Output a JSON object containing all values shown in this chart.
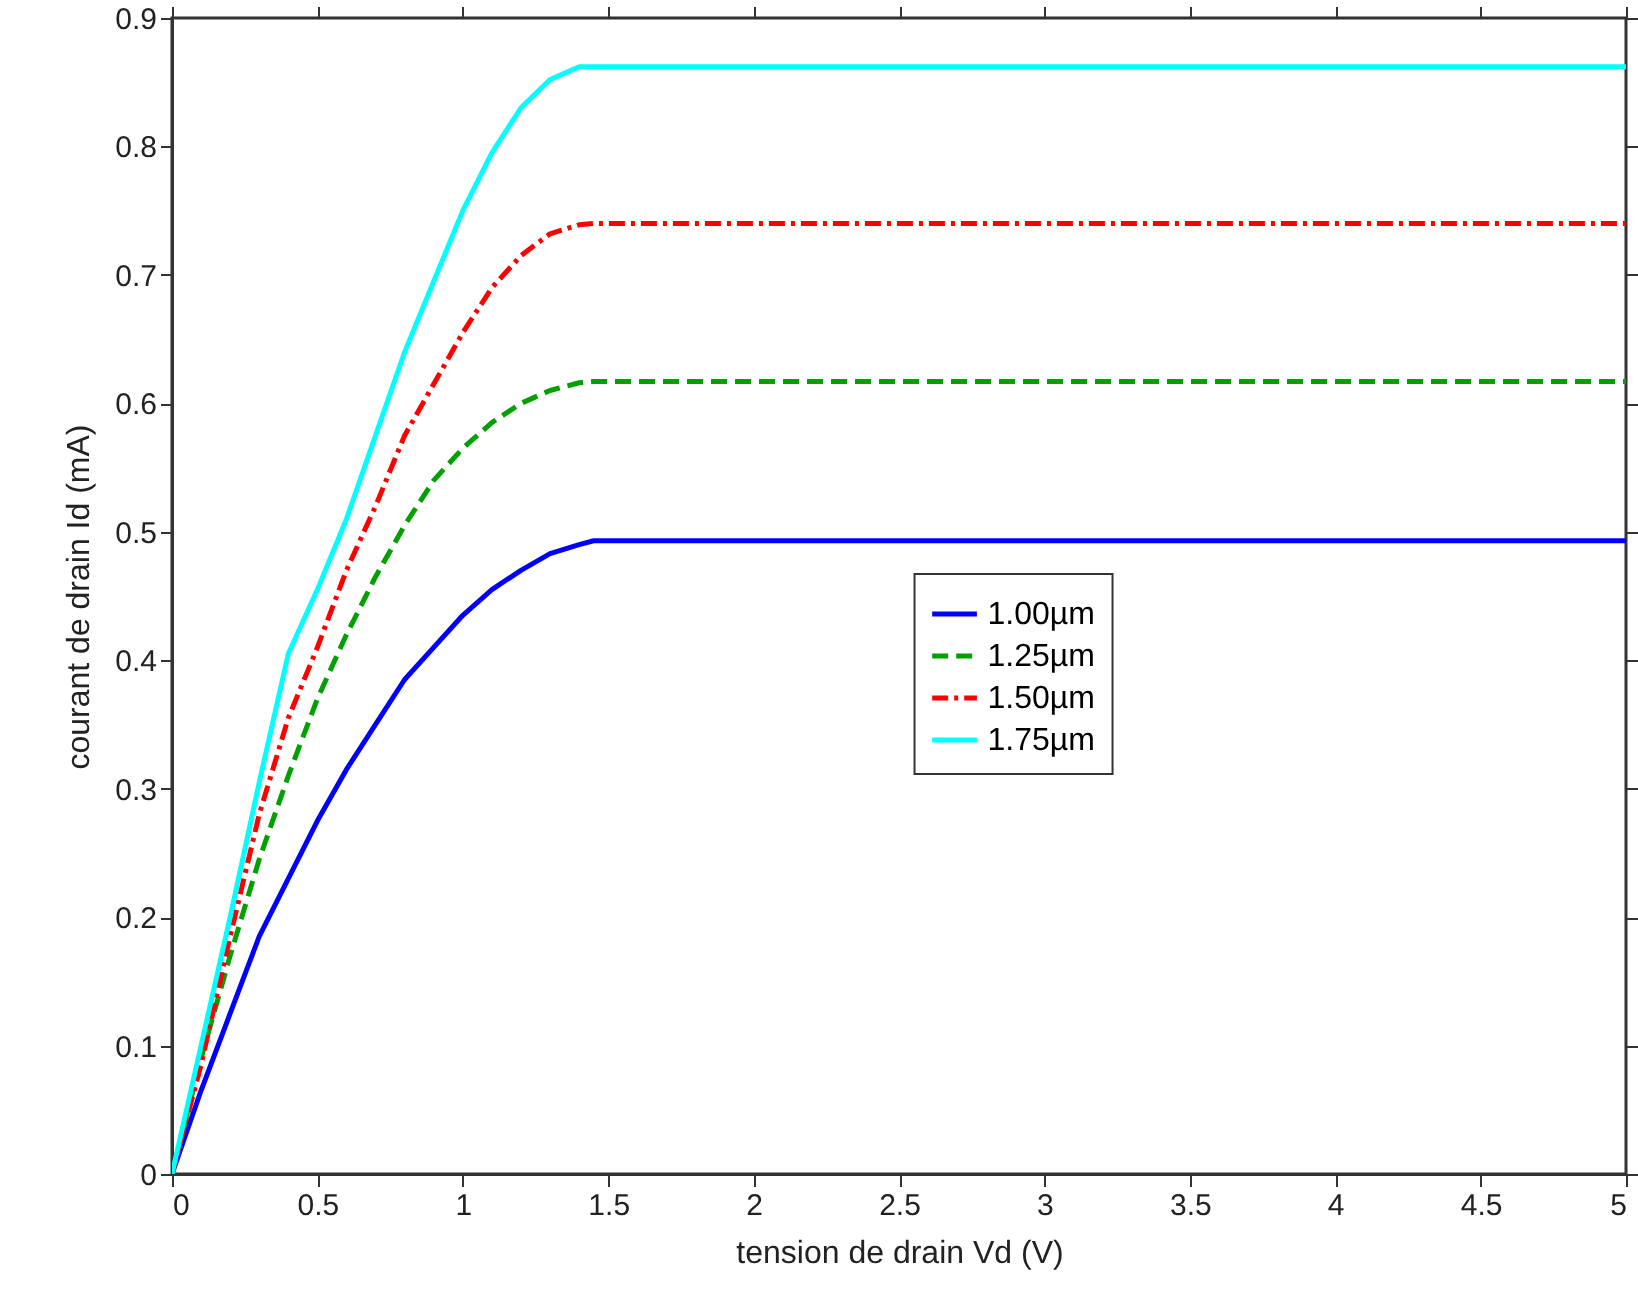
{
  "chart_data": {
    "type": "line",
    "xlabel": "tension de drain Vd (V)",
    "ylabel": "courant de drain Id (mA)",
    "x": [
      0,
      0.1,
      0.2,
      0.3,
      0.4,
      0.5,
      0.6,
      0.7,
      0.8,
      0.9,
      1.0,
      1.1,
      1.2,
      1.3,
      1.4,
      1.45,
      5
    ],
    "xlim": [
      0,
      5
    ],
    "xticks": [
      0,
      0.5,
      1,
      1.5,
      2,
      2.5,
      3,
      3.5,
      4,
      4.5,
      5
    ],
    "ylim": [
      0,
      0.9
    ],
    "yticks": [
      0,
      0.1,
      0.2,
      0.3,
      0.4,
      0.5,
      0.6,
      0.7,
      0.8,
      0.9
    ],
    "grid": false,
    "legend": "center",
    "marker": "none",
    "series": [
      {
        "name": "1.00µm",
        "color": "#0000ff",
        "line_style": "solid",
        "values": [
          0,
          0.065,
          0.125,
          0.185,
          0.23,
          0.275,
          0.315,
          0.35,
          0.385,
          0.41,
          0.435,
          0.455,
          0.47,
          0.483,
          0.49,
          0.493,
          0.493
        ]
      },
      {
        "name": "1.25µm",
        "color": "#00a000",
        "line_style": "dashed",
        "values": [
          0,
          0.09,
          0.17,
          0.245,
          0.31,
          0.37,
          0.42,
          0.465,
          0.505,
          0.54,
          0.565,
          0.585,
          0.6,
          0.61,
          0.616,
          0.617,
          0.617
        ]
      },
      {
        "name": "1.50µm",
        "color": "#ff0000",
        "line_style": "dashdot",
        "values": [
          0,
          0.085,
          0.185,
          0.28,
          0.355,
          0.41,
          0.47,
          0.52,
          0.575,
          0.615,
          0.655,
          0.69,
          0.715,
          0.732,
          0.739,
          0.74,
          0.74
        ]
      },
      {
        "name": "1.75µm",
        "color": "#00ffff",
        "line_style": "solid",
        "values": [
          0,
          0.1,
          0.2,
          0.305,
          0.405,
          0.455,
          0.51,
          0.575,
          0.64,
          0.695,
          0.75,
          0.795,
          0.83,
          0.852,
          0.862,
          0.862,
          0.862
        ]
      }
    ]
  }
}
